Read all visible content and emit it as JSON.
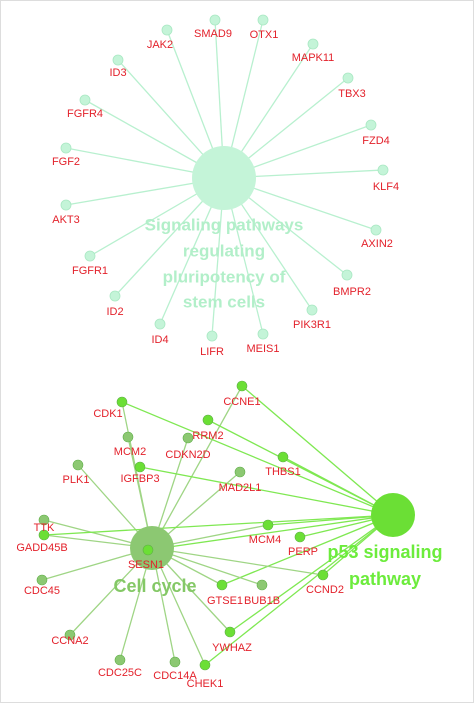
{
  "top_cluster": {
    "hub_label": [
      "Signaling pathways",
      "regulating",
      "pluripotency of",
      "stem cells"
    ],
    "genes": [
      "JAK2",
      "SMAD9",
      "OTX1",
      "MAPK11",
      "TBX3",
      "FZD4",
      "KLF4",
      "AXIN2",
      "BMPR2",
      "PIK3R1",
      "MEIS1",
      "LIFR",
      "ID4",
      "ID2",
      "FGFR1",
      "AKT3",
      "FGF2",
      "FGFR4",
      "ID3"
    ]
  },
  "bottom_cluster": {
    "hubs": [
      {
        "label": [
          "Cell cycle"
        ]
      },
      {
        "label": [
          "p53 signaling",
          "pathway"
        ]
      }
    ],
    "genes": [
      "CCNE1",
      "CDK1",
      "RRM2",
      "MCM2",
      "CDKN2D",
      "THBS1",
      "IGFBP3",
      "PLK1",
      "MAD2L1",
      "TTK",
      "GADD45B",
      "SESN1",
      "MCM4",
      "PERP",
      "CDC45",
      "GTSE1",
      "BUB1B",
      "CCND2",
      "CCNA2",
      "YWHAZ",
      "CDC25C",
      "CDC14A",
      "CHEK1"
    ]
  }
}
